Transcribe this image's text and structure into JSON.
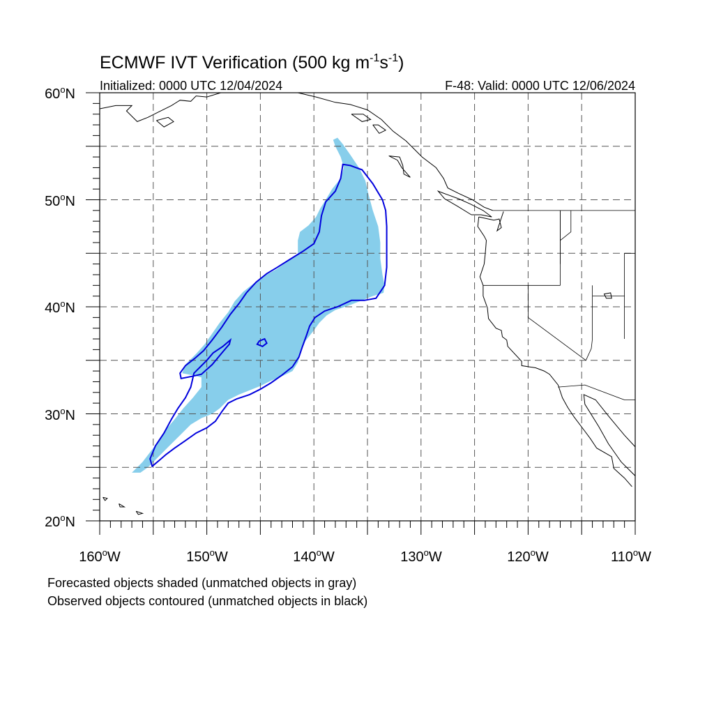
{
  "title": {
    "prefix": "ECMWF IVT Verification (500 kg m",
    "exp1": "-1",
    "mid": "s",
    "exp2": "-1",
    "suffix": ")"
  },
  "initialized": "Initialized: 0000 UTC 12/04/2024",
  "valid": "F-48: Valid: 0000 UTC 12/06/2024",
  "lat_labels": [
    "60",
    "50",
    "40",
    "30",
    "20"
  ],
  "lat_hemi": "N",
  "lon_labels": [
    "160",
    "150",
    "140",
    "130",
    "120",
    "110"
  ],
  "lon_hemi": "W",
  "degree_symbol": "o",
  "footnotes": [
    "Forecasted objects shaded (unmatched objects in gray)",
    "Observed objects contoured (unmatched objects in black)"
  ],
  "map_extent": {
    "lon_min": -160,
    "lon_max": -110,
    "lat_min": 20,
    "lat_max": 60
  },
  "colors": {
    "forecast_fill": "#87ceeb",
    "observed_contour": "#0000dd",
    "coast": "#000000",
    "grid": "#555555"
  },
  "forecast_object": [
    [
      -156.2,
      24.5
    ],
    [
      -155.5,
      25.0
    ],
    [
      -154.5,
      26.0
    ],
    [
      -153.5,
      27.0
    ],
    [
      -152.5,
      28.0
    ],
    [
      -151.5,
      29.0
    ],
    [
      -150.5,
      29.6
    ],
    [
      -149.5,
      30.0
    ],
    [
      -148.8,
      30.5
    ],
    [
      -148.0,
      31.3
    ],
    [
      -147.0,
      31.8
    ],
    [
      -146.0,
      32.2
    ],
    [
      -145.0,
      32.6
    ],
    [
      -144.0,
      33.1
    ],
    [
      -143.0,
      33.5
    ],
    [
      -142.0,
      34.0
    ],
    [
      -141.5,
      34.8
    ],
    [
      -141.2,
      35.8
    ],
    [
      -140.8,
      36.8
    ],
    [
      -140.0,
      37.8
    ],
    [
      -139.5,
      38.5
    ],
    [
      -138.8,
      39.2
    ],
    [
      -138.0,
      39.7
    ],
    [
      -136.8,
      40.1
    ],
    [
      -135.5,
      40.6
    ],
    [
      -134.5,
      41.0
    ],
    [
      -133.5,
      41.3
    ],
    [
      -133.4,
      42.0
    ],
    [
      -133.6,
      43.0
    ],
    [
      -133.8,
      44.5
    ],
    [
      -133.8,
      46.0
    ],
    [
      -134.0,
      47.5
    ],
    [
      -134.5,
      49.0
    ],
    [
      -134.9,
      50.5
    ],
    [
      -135.2,
      51.8
    ],
    [
      -135.8,
      53.0
    ],
    [
      -136.6,
      54.2
    ],
    [
      -137.3,
      55.2
    ],
    [
      -137.8,
      55.8
    ],
    [
      -138.2,
      55.6
    ],
    [
      -138.0,
      55.0
    ],
    [
      -137.5,
      54.0
    ],
    [
      -137.2,
      53.0
    ],
    [
      -137.5,
      52.0
    ],
    [
      -138.3,
      51.0
    ],
    [
      -138.9,
      50.0
    ],
    [
      -139.4,
      49.2
    ],
    [
      -139.8,
      48.4
    ],
    [
      -140.5,
      47.6
    ],
    [
      -141.3,
      47.0
    ],
    [
      -141.5,
      46.2
    ],
    [
      -141.5,
      45.5
    ],
    [
      -141.5,
      45.0
    ],
    [
      -142.5,
      44.2
    ],
    [
      -143.5,
      43.5
    ],
    [
      -144.6,
      42.9
    ],
    [
      -145.6,
      42.2
    ],
    [
      -146.6,
      41.4
    ],
    [
      -147.4,
      40.5
    ],
    [
      -148.0,
      39.5
    ],
    [
      -148.8,
      38.5
    ],
    [
      -149.5,
      37.5
    ],
    [
      -150.2,
      36.5
    ],
    [
      -151.0,
      35.6
    ],
    [
      -152.0,
      34.6
    ],
    [
      -152.3,
      33.8
    ],
    [
      -151.3,
      33.6
    ],
    [
      -150.5,
      33.4
    ],
    [
      -150.5,
      32.5
    ],
    [
      -151.3,
      31.5
    ],
    [
      -152.2,
      30.5
    ],
    [
      -153.0,
      29.5
    ],
    [
      -154.0,
      28.3
    ],
    [
      -155.0,
      26.8
    ],
    [
      -156.0,
      25.5
    ],
    [
      -157.0,
      24.5
    ]
  ],
  "observed_object": [
    [
      -155.1,
      25.1
    ],
    [
      -154.5,
      25.6
    ],
    [
      -153.8,
      26.2
    ],
    [
      -153.0,
      26.8
    ],
    [
      -152.0,
      27.5
    ],
    [
      -151.0,
      28.2
    ],
    [
      -150.0,
      28.7
    ],
    [
      -149.2,
      29.3
    ],
    [
      -148.6,
      30.2
    ],
    [
      -148.0,
      31.0
    ],
    [
      -147.2,
      31.4
    ],
    [
      -146.0,
      31.8
    ],
    [
      -145.0,
      32.3
    ],
    [
      -144.0,
      32.9
    ],
    [
      -143.0,
      33.6
    ],
    [
      -142.0,
      34.4
    ],
    [
      -141.4,
      35.3
    ],
    [
      -141.1,
      36.2
    ],
    [
      -140.7,
      37.3
    ],
    [
      -140.4,
      38.2
    ],
    [
      -139.9,
      39.0
    ],
    [
      -139.0,
      39.6
    ],
    [
      -137.8,
      40.0
    ],
    [
      -136.5,
      40.6
    ],
    [
      -135.3,
      40.6
    ],
    [
      -134.2,
      40.8
    ],
    [
      -133.4,
      42.0
    ],
    [
      -133.2,
      43.7
    ],
    [
      -133.2,
      45.5
    ],
    [
      -133.2,
      47.5
    ],
    [
      -133.3,
      49.0
    ],
    [
      -133.6,
      50.0
    ],
    [
      -134.5,
      51.5
    ],
    [
      -135.5,
      52.8
    ],
    [
      -136.6,
      53.2
    ],
    [
      -137.3,
      53.3
    ],
    [
      -137.5,
      52.0
    ],
    [
      -138.0,
      50.8
    ],
    [
      -138.9,
      49.8
    ],
    [
      -139.3,
      48.5
    ],
    [
      -139.5,
      47.0
    ],
    [
      -140.0,
      45.9
    ],
    [
      -141.0,
      45.2
    ],
    [
      -142.3,
      44.4
    ],
    [
      -143.4,
      43.7
    ],
    [
      -144.4,
      43.1
    ],
    [
      -145.4,
      42.3
    ],
    [
      -146.3,
      41.3
    ],
    [
      -147.0,
      40.3
    ],
    [
      -147.8,
      39.3
    ],
    [
      -148.6,
      38.1
    ],
    [
      -149.5,
      36.9
    ],
    [
      -150.3,
      35.9
    ],
    [
      -151.1,
      35.2
    ],
    [
      -152.0,
      34.5
    ],
    [
      -152.5,
      33.8
    ],
    [
      -152.4,
      33.3
    ],
    [
      -151.4,
      33.5
    ],
    [
      -150.5,
      33.7
    ],
    [
      -149.5,
      34.6
    ],
    [
      -148.5,
      35.8
    ],
    [
      -147.9,
      36.5
    ],
    [
      -147.8,
      36.9
    ],
    [
      -148.5,
      36.3
    ],
    [
      -149.4,
      35.7
    ],
    [
      -150.0,
      35.0
    ],
    [
      -150.6,
      34.4
    ],
    [
      -151.2,
      33.8
    ],
    [
      -151.5,
      32.5
    ],
    [
      -152.0,
      31.5
    ],
    [
      -152.7,
      30.5
    ],
    [
      -153.3,
      29.5
    ],
    [
      -154.0,
      28.2
    ],
    [
      -154.8,
      27.0
    ],
    [
      -155.3,
      25.8
    ]
  ],
  "observed_small_object": [
    [
      -145.1,
      36.8
    ],
    [
      -144.6,
      37.0
    ],
    [
      -144.4,
      36.6
    ],
    [
      -144.8,
      36.3
    ],
    [
      -145.3,
      36.5
    ]
  ],
  "state_borders": [
    [
      [
        -124.2,
        42.0
      ],
      [
        -117.0,
        42.0
      ]
    ],
    [
      [
        -117.0,
        42.0
      ],
      [
        -117.0,
        49.0
      ]
    ],
    [
      [
        -120.0,
        42.0
      ],
      [
        -120.0,
        39.0
      ],
      [
        -114.6,
        35.0
      ]
    ],
    [
      [
        -114.0,
        42.0
      ],
      [
        -114.0,
        37.0
      ]
    ],
    [
      [
        -114.0,
        37.0
      ],
      [
        -114.1,
        36.1
      ],
      [
        -114.6,
        35.0
      ]
    ],
    [
      [
        -117.0,
        44.0
      ],
      [
        -117.0,
        49.0
      ]
    ],
    [
      [
        -111.0,
        45.0
      ],
      [
        -111.0,
        41.0
      ],
      [
        -114.0,
        41.0
      ]
    ],
    [
      [
        -117.2,
        32.5
      ],
      [
        -114.7,
        32.7
      ],
      [
        -111.0,
        31.3
      ],
      [
        -108.2,
        31.3
      ]
    ],
    [
      [
        -123.3,
        49.0
      ],
      [
        -95.0,
        49.0
      ]
    ],
    [
      [
        -116.0,
        49.0
      ],
      [
        -116.0,
        47.0
      ],
      [
        -117.0,
        46.2
      ]
    ],
    [
      [
        -111.0,
        45.0
      ],
      [
        -108.0,
        45.0
      ]
    ],
    [
      [
        -111.0,
        41.0
      ],
      [
        -111.0,
        37.0
      ]
    ]
  ],
  "coastlines": [
    [
      [
        -124.6,
        48.4
      ],
      [
        -124.7,
        47.5
      ],
      [
        -124.1,
        46.6
      ],
      [
        -123.9,
        46.2
      ],
      [
        -124.0,
        45.0
      ],
      [
        -124.1,
        44.0
      ],
      [
        -124.5,
        42.8
      ],
      [
        -124.2,
        42.0
      ],
      [
        -124.2,
        41.0
      ],
      [
        -123.8,
        39.9
      ],
      [
        -123.7,
        38.9
      ],
      [
        -123.0,
        38.0
      ],
      [
        -122.5,
        37.8
      ],
      [
        -122.4,
        37.2
      ],
      [
        -122.0,
        36.9
      ],
      [
        -121.9,
        36.3
      ],
      [
        -120.6,
        34.9
      ],
      [
        -120.6,
        34.5
      ],
      [
        -119.3,
        34.3
      ],
      [
        -118.5,
        34.0
      ],
      [
        -118.0,
        33.7
      ],
      [
        -117.2,
        32.7
      ],
      [
        -116.8,
        31.5
      ],
      [
        -116.3,
        30.6
      ],
      [
        -115.7,
        29.7
      ],
      [
        -114.8,
        28.5
      ],
      [
        -114.2,
        27.7
      ],
      [
        -113.6,
        26.8
      ],
      [
        -112.2,
        26.0
      ],
      [
        -112.0,
        24.9
      ],
      [
        -111.0,
        24.0
      ],
      [
        -110.3,
        23.2
      ]
    ],
    [
      [
        -110.0,
        24.2
      ],
      [
        -111.3,
        25.5
      ],
      [
        -112.5,
        27.2
      ],
      [
        -113.4,
        28.8
      ],
      [
        -114.7,
        30.9
      ],
      [
        -114.8,
        31.8
      ],
      [
        -113.7,
        31.3
      ],
      [
        -112.5,
        29.8
      ],
      [
        -111.0,
        28.0
      ],
      [
        -109.8,
        26.7
      ],
      [
        -109.0,
        25.6
      ],
      [
        -108.0,
        25.0
      ],
      [
        -106.8,
        23.6
      ]
    ],
    [
      [
        -124.6,
        48.4
      ],
      [
        -123.2,
        48.1
      ],
      [
        -122.7,
        48.2
      ],
      [
        -122.5,
        47.4
      ],
      [
        -122.9,
        47.1
      ],
      [
        -122.3,
        48.9
      ]
    ],
    [
      [
        -123.3,
        49.0
      ],
      [
        -124.1,
        49.3
      ],
      [
        -125.2,
        50.0
      ],
      [
        -126.5,
        50.6
      ],
      [
        -127.5,
        51.1
      ],
      [
        -127.9,
        52.0
      ],
      [
        -128.6,
        53.0
      ],
      [
        -129.9,
        54.0
      ],
      [
        -130.6,
        54.7
      ],
      [
        -131.4,
        55.5
      ],
      [
        -132.6,
        56.4
      ],
      [
        -133.7,
        57.5
      ],
      [
        -135.0,
        58.4
      ],
      [
        -136.6,
        58.9
      ],
      [
        -138.0,
        59.1
      ],
      [
        -139.8,
        59.6
      ],
      [
        -141.5,
        60.0
      ]
    ],
    [
      [
        -125.3,
        48.6
      ],
      [
        -124.4,
        48.6
      ],
      [
        -123.4,
        48.4
      ],
      [
        -124.2,
        49.0
      ],
      [
        -125.4,
        49.6
      ],
      [
        -126.5,
        50.1
      ],
      [
        -127.6,
        50.5
      ],
      [
        -128.4,
        50.8
      ],
      [
        -127.8,
        50.1
      ],
      [
        -126.6,
        49.4
      ],
      [
        -125.3,
        48.6
      ]
    ],
    [
      [
        -132.0,
        54.0
      ],
      [
        -131.7,
        53.2
      ],
      [
        -131.6,
        52.4
      ],
      [
        -131.0,
        52.1
      ],
      [
        -131.8,
        53.0
      ],
      [
        -132.2,
        53.7
      ],
      [
        -133.0,
        54.1
      ],
      [
        -132.0,
        54.0
      ]
    ],
    [
      [
        -155.9,
        20.0
      ],
      [
        -155.0,
        19.5
      ],
      [
        -155.5,
        19.1
      ],
      [
        -155.9,
        19.6
      ],
      [
        -155.9,
        20.0
      ]
    ],
    [
      [
        -156.6,
        20.9
      ],
      [
        -156.0,
        20.7
      ],
      [
        -156.4,
        20.6
      ],
      [
        -156.6,
        20.9
      ]
    ],
    [
      [
        -158.2,
        21.6
      ],
      [
        -157.7,
        21.3
      ],
      [
        -158.1,
        21.3
      ],
      [
        -158.2,
        21.6
      ]
    ],
    [
      [
        -159.7,
        22.2
      ],
      [
        -159.3,
        22.1
      ],
      [
        -159.5,
        21.9
      ],
      [
        -159.7,
        22.2
      ]
    ],
    [
      [
        -160.0,
        58.5
      ],
      [
        -158.5,
        58.8
      ],
      [
        -157.0,
        58.8
      ],
      [
        -157.5,
        58.3
      ],
      [
        -156.5,
        57.3
      ],
      [
        -155.5,
        57.7
      ],
      [
        -154.5,
        58.2
      ],
      [
        -153.3,
        58.8
      ],
      [
        -152.5,
        59.3
      ],
      [
        -151.5,
        59.2
      ],
      [
        -151.0,
        59.7
      ],
      [
        -150.0,
        59.6
      ],
      [
        -148.7,
        60.0
      ]
    ],
    [
      [
        -154.7,
        57.4
      ],
      [
        -153.6,
        57.7
      ],
      [
        -153.1,
        57.3
      ],
      [
        -154.0,
        56.8
      ],
      [
        -154.7,
        57.4
      ]
    ],
    [
      [
        -136.5,
        58.0
      ],
      [
        -135.5,
        57.3
      ],
      [
        -134.7,
        57.5
      ],
      [
        -135.4,
        58.0
      ],
      [
        -136.5,
        58.0
      ]
    ],
    [
      [
        -134.5,
        57.0
      ],
      [
        -133.9,
        56.2
      ],
      [
        -133.3,
        56.5
      ],
      [
        -134.0,
        57.0
      ],
      [
        -134.5,
        57.0
      ]
    ],
    [
      [
        -111.0,
        60.0
      ],
      [
        -110.0,
        60.0
      ]
    ]
  ],
  "lakes": [
    [
      [
        -112.9,
        41.2
      ],
      [
        -112.3,
        41.3
      ],
      [
        -112.2,
        40.8
      ],
      [
        -112.7,
        40.8
      ],
      [
        -112.9,
        41.2
      ]
    ]
  ]
}
